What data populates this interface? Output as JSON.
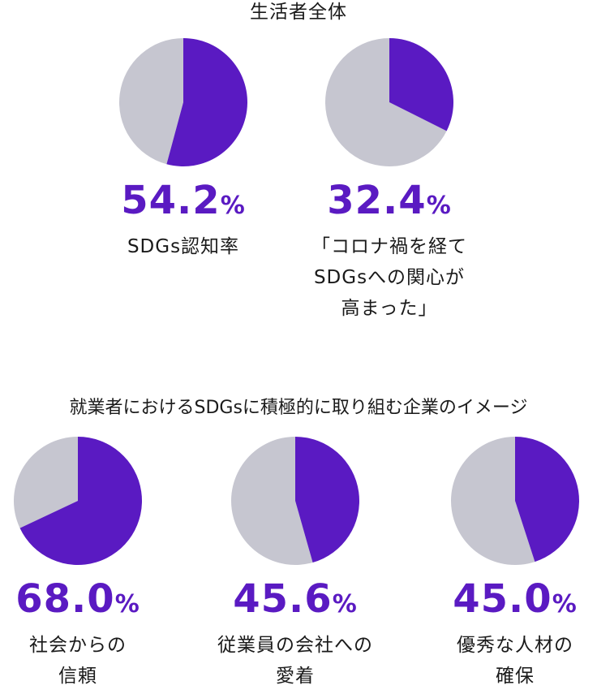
{
  "colors": {
    "highlight": "#5a1ac2",
    "rest": "#c6c6d0",
    "text": "#1a1a1a"
  },
  "section1": {
    "title": "生活者全体"
  },
  "section2": {
    "title": "就業者におけるSDGsに積極的に取り組む企業のイメージ"
  },
  "chart_data": [
    {
      "type": "pie",
      "section": "生活者全体",
      "value": 54.2,
      "value_label": "54.2",
      "unit": "%",
      "label": "SDGs認知率"
    },
    {
      "type": "pie",
      "section": "生活者全体",
      "value": 32.4,
      "value_label": "32.4",
      "unit": "%",
      "label": "「コロナ禍を経て\nSDGsへの関心が\n高まった」"
    },
    {
      "type": "pie",
      "section": "就業者におけるSDGsに積極的に取り組む企業のイメージ",
      "value": 68.0,
      "value_label": "68.0",
      "unit": "%",
      "label": "社会からの\n信頼"
    },
    {
      "type": "pie",
      "section": "就業者におけるSDGsに積極的に取り組む企業のイメージ",
      "value": 45.6,
      "value_label": "45.6",
      "unit": "%",
      "label": "従業員の会社への\n愛着"
    },
    {
      "type": "pie",
      "section": "就業者におけるSDGsに積極的に取り組む企業のイメージ",
      "value": 45.0,
      "value_label": "45.0",
      "unit": "%",
      "label": "優秀な人材の\n確保"
    }
  ]
}
